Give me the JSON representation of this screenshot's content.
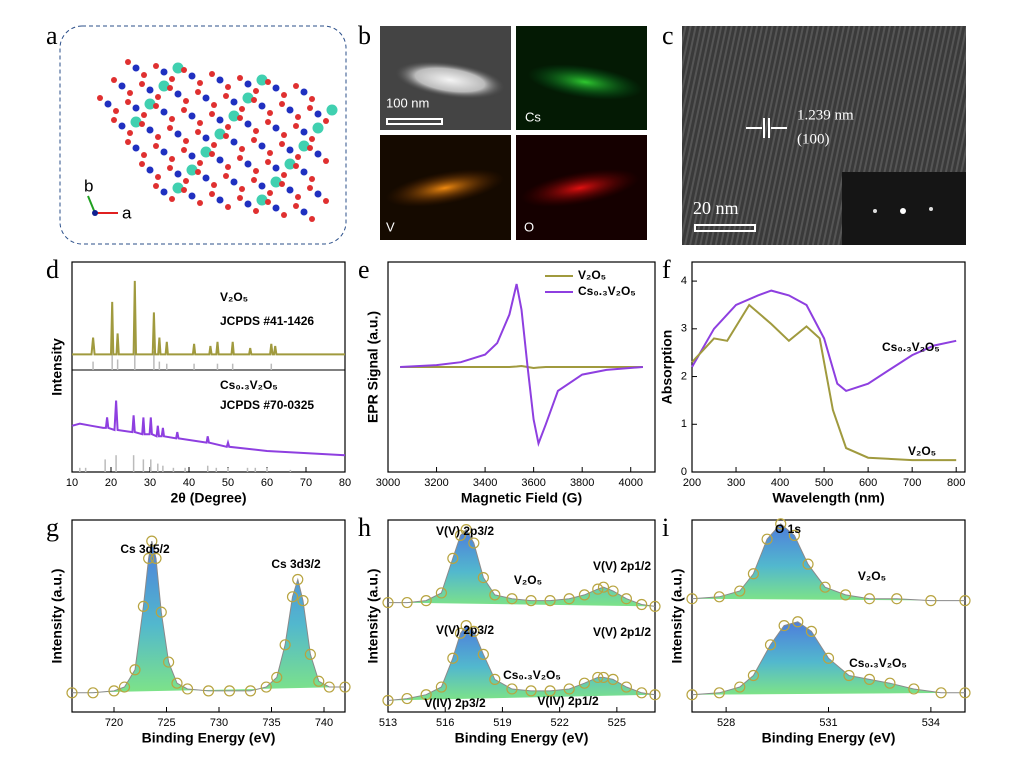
{
  "panel_labels": [
    "a",
    "b",
    "c",
    "d",
    "e",
    "f",
    "g",
    "h",
    "i"
  ],
  "structure": {
    "axes": [
      "b",
      "a"
    ]
  },
  "mapping": {
    "scale_bar": "100 nm",
    "elements": [
      "Cs",
      "V",
      "O"
    ]
  },
  "hrtem": {
    "spacing": "1.239 nm",
    "plane": "(100)",
    "scale_bar": "20 nm"
  },
  "chart_data": [
    {
      "type": "line",
      "xlabel": "2θ (Degree)",
      "ylabel": "Intensity",
      "xlim": [
        10,
        80
      ],
      "xticks": [
        10,
        20,
        30,
        40,
        50,
        60,
        70,
        80
      ],
      "ylim": [
        0,
        100
      ],
      "series": [
        {
          "name": "V₂O₅",
          "reference": "JCPDS #41-1426",
          "color": "#a09a3e",
          "x": [
            10,
            15,
            15.4,
            15.8,
            20,
            20.3,
            20.6,
            21.4,
            21.7,
            22,
            25.8,
            26.1,
            26.4,
            30.7,
            31,
            31.3,
            32.1,
            32.4,
            32.7,
            34,
            34.3,
            34.6,
            41,
            41.3,
            41.6,
            45.2,
            45.5,
            45.8,
            47,
            47.3,
            47.6,
            50.9,
            51.2,
            51.5,
            55.4,
            55.7,
            56,
            60.8,
            61.1,
            61.4,
            61.8,
            62.1,
            62.4,
            80
          ],
          "values": [
            56,
            56,
            64,
            56,
            56,
            81,
            56,
            56,
            66,
            56,
            56,
            91,
            56,
            56,
            76,
            56,
            56,
            64,
            56,
            56,
            62,
            56,
            56,
            61,
            56,
            56,
            60,
            56,
            56,
            62,
            56,
            56,
            62,
            56,
            56,
            59,
            56,
            56,
            61,
            56,
            56,
            60,
            56,
            56
          ],
          "ref_color": "#bbbbbb",
          "ref_x": [
            15.4,
            20.3,
            21.7,
            26.1,
            31,
            32.4,
            34.3,
            41.3,
            47.3,
            51.2,
            61.1
          ],
          "ref_values": [
            4,
            12,
            5,
            14,
            9,
            4,
            3,
            3,
            3,
            3,
            3
          ]
        },
        {
          "name": "Cs₀.₃V₂O₅",
          "reference": "JCPDS #70-0325",
          "color": "#8e3fe0",
          "x": [
            10,
            12,
            15,
            18,
            18.7,
            19,
            19.3,
            20.9,
            21.3,
            21.7,
            25.5,
            25.8,
            26.1,
            28,
            28.3,
            28.6,
            29.9,
            30.2,
            30.5,
            31.7,
            32,
            32.3,
            33,
            33.3,
            33.6,
            36.7,
            37,
            37.3,
            44.5,
            44.8,
            45.1,
            49.7,
            50,
            50.3,
            60,
            70,
            80
          ],
          "values": [
            22,
            23,
            22,
            21,
            21,
            26,
            21,
            20,
            34,
            20,
            19,
            27,
            19,
            18,
            26,
            18,
            18,
            26,
            18,
            17,
            22,
            17,
            17,
            21,
            17,
            16,
            19,
            16,
            14,
            17,
            14,
            12,
            14,
            12,
            10,
            9,
            8
          ],
          "ref_color": "#bbbbbb",
          "ref_x": [
            12,
            13.5,
            18.5,
            21.3,
            25.8,
            28.3,
            30.2,
            32,
            33.3,
            36,
            39,
            44.8,
            47,
            50,
            55,
            57,
            60,
            66
          ],
          "ref_values": [
            2,
            2,
            6,
            8,
            8,
            6,
            6,
            4,
            3,
            2,
            2,
            3,
            2,
            2,
            2,
            2,
            2,
            1
          ]
        }
      ]
    },
    {
      "type": "line",
      "xlabel": "Magnetic Field (G)",
      "ylabel": "EPR Signal (a.u.)",
      "xlim": [
        3000,
        4100
      ],
      "xticks": [
        3000,
        3200,
        3400,
        3600,
        3800,
        4000
      ],
      "ylim": [
        -1.1,
        1.1
      ],
      "legend": "upper right",
      "x": [
        3050,
        3200,
        3300,
        3400,
        3450,
        3500,
        3530,
        3550,
        3575,
        3600,
        3620,
        3650,
        3700,
        3800,
        3900,
        4050
      ],
      "series": [
        {
          "name": "V₂O₅",
          "color": "#a09a3e",
          "values": [
            0,
            0,
            0,
            0,
            0,
            0,
            0.005,
            0.01,
            0,
            -0.01,
            -0.005,
            0,
            0,
            0,
            0,
            0
          ]
        },
        {
          "name": "Cs₀.₃V₂O₅",
          "color": "#8e3fe0",
          "values": [
            0,
            0.02,
            0.05,
            0.13,
            0.25,
            0.55,
            0.87,
            0.6,
            0,
            -0.55,
            -0.8,
            -0.6,
            -0.25,
            -0.08,
            -0.03,
            0
          ]
        }
      ]
    },
    {
      "type": "line",
      "xlabel": "Wavelength (nm)",
      "ylabel": "Absorption",
      "xlim": [
        200,
        820
      ],
      "xticks": [
        200,
        300,
        400,
        500,
        600,
        700,
        800
      ],
      "ylim": [
        0,
        4.4
      ],
      "yticks": [
        0,
        1,
        2,
        3,
        4
      ],
      "series": [
        {
          "name": "Cs₀.₃V₂O₅",
          "color": "#8e3fe0",
          "x": [
            200,
            250,
            300,
            350,
            380,
            420,
            460,
            500,
            530,
            550,
            600,
            650,
            700,
            750,
            800
          ],
          "values": [
            2.2,
            3.0,
            3.5,
            3.7,
            3.8,
            3.7,
            3.5,
            2.8,
            1.85,
            1.7,
            1.85,
            2.15,
            2.45,
            2.65,
            2.75
          ]
        },
        {
          "name": "V₂O₅",
          "color": "#a09a3e",
          "x": [
            200,
            250,
            280,
            330,
            380,
            420,
            460,
            490,
            520,
            550,
            600,
            700,
            800
          ],
          "values": [
            2.3,
            2.8,
            2.75,
            3.5,
            3.1,
            2.75,
            3.05,
            2.8,
            1.3,
            0.5,
            0.3,
            0.25,
            0.25
          ]
        }
      ]
    },
    {
      "type": "xps",
      "xlabel": "Binding Energy (eV)",
      "ylabel": "Intensity (a.u.)",
      "xlim": [
        716,
        742
      ],
      "xticks": [
        720,
        725,
        730,
        735,
        740
      ],
      "ylim": [
        0,
        100
      ],
      "series": [
        {
          "x": [
            716,
            718,
            720,
            721,
            722,
            722.8,
            723.3,
            723.6,
            724,
            724.5,
            725.2,
            726,
            727,
            729,
            731,
            733,
            734.5,
            735.5,
            736.3,
            737,
            737.5,
            738,
            738.7,
            739.5,
            740.5,
            742
          ],
          "values": [
            10,
            10,
            11,
            13,
            22,
            55,
            80,
            89,
            80,
            52,
            26,
            15,
            12,
            11,
            11,
            11,
            13,
            18,
            35,
            60,
            69,
            58,
            30,
            16,
            13,
            13
          ]
        }
      ],
      "annotations": [
        {
          "text": "Cs 3d5/2",
          "color": "#1a2a9a"
        },
        {
          "text": "Cs 3d3/2",
          "color": "#1a2a9a"
        }
      ]
    },
    {
      "type": "xps",
      "xlabel": "Binding Energy (eV)",
      "ylabel": "Intensity (a.u.)",
      "xlim": [
        513,
        527
      ],
      "xticks": [
        513,
        516,
        519,
        522,
        525
      ],
      "ylim": [
        0,
        100
      ],
      "series": [
        {
          "x": [
            513,
            514,
            515,
            515.8,
            516.4,
            516.8,
            517.1,
            517.5,
            518,
            518.6,
            519.5,
            520.5,
            521.5,
            522.5,
            523.3,
            524,
            524.3,
            524.8,
            525.5,
            526.3,
            527
          ],
          "values": [
            57,
            57,
            58,
            62,
            80,
            92,
            95,
            88,
            70,
            61,
            59,
            58,
            58,
            59,
            61,
            64,
            65,
            63,
            59,
            56,
            55
          ]
        },
        {
          "x": [
            513,
            514,
            515,
            515.8,
            516.4,
            516.8,
            517.1,
            517.5,
            518,
            518.6,
            519.5,
            520.5,
            521.5,
            522.5,
            523.3,
            524,
            524.3,
            524.8,
            525.5,
            526.3,
            527
          ],
          "values": [
            6,
            7,
            9,
            13,
            28,
            41,
            45,
            42,
            30,
            17,
            12,
            11,
            11,
            12,
            15,
            18,
            18,
            17,
            13,
            10,
            9
          ]
        }
      ],
      "annotations": [
        {
          "text": "V(V) 2p3/2",
          "color": "#1a2a9a"
        },
        {
          "text": "V(V) 2p1/2",
          "color": "#1a2a9a"
        },
        {
          "text": "V₂O₅",
          "color": "#8a8a2a"
        },
        {
          "text": "V(V) 2p3/2",
          "color": "#8e3fe0"
        },
        {
          "text": "V(V) 2p1/2",
          "color": "#8e3fe0"
        },
        {
          "text": "Cs₀.₃V₂O₅",
          "color": "#8e3fe0"
        },
        {
          "text": "V(IV) 2p3/2",
          "color": "#8a8a2a"
        },
        {
          "text": "V(IV) 2p1/2",
          "color": "#8a8a2a"
        }
      ]
    },
    {
      "type": "xps",
      "xlabel": "Binding Energy (eV)",
      "ylabel": "Intensity (a.u.)",
      "xlim": [
        527,
        535
      ],
      "xticks": [
        528,
        531,
        534
      ],
      "ylim": [
        0,
        100
      ],
      "series": [
        {
          "x": [
            527,
            527.8,
            528.4,
            528.8,
            529.2,
            529.6,
            530,
            530.4,
            530.9,
            531.5,
            532.2,
            533,
            534,
            535
          ],
          "values": [
            59,
            60,
            63,
            72,
            90,
            98,
            92,
            77,
            65,
            61,
            59,
            59,
            58,
            58
          ]
        },
        {
          "x": [
            527,
            527.8,
            528.4,
            528.8,
            529.3,
            529.7,
            530.1,
            530.5,
            531,
            531.6,
            532.2,
            532.8,
            533.5,
            534.3,
            535
          ],
          "values": [
            9,
            10,
            13,
            19,
            35,
            45,
            47,
            42,
            28,
            19,
            17,
            15,
            12,
            10,
            10
          ]
        }
      ],
      "annotations": [
        {
          "text": "O 1s",
          "color": "#1a2a9a"
        },
        {
          "text": "V₂O₅",
          "color": "#8a8a2a"
        },
        {
          "text": "Cs₀.₃V₂O₅",
          "color": "#8e3fe0"
        }
      ]
    }
  ]
}
